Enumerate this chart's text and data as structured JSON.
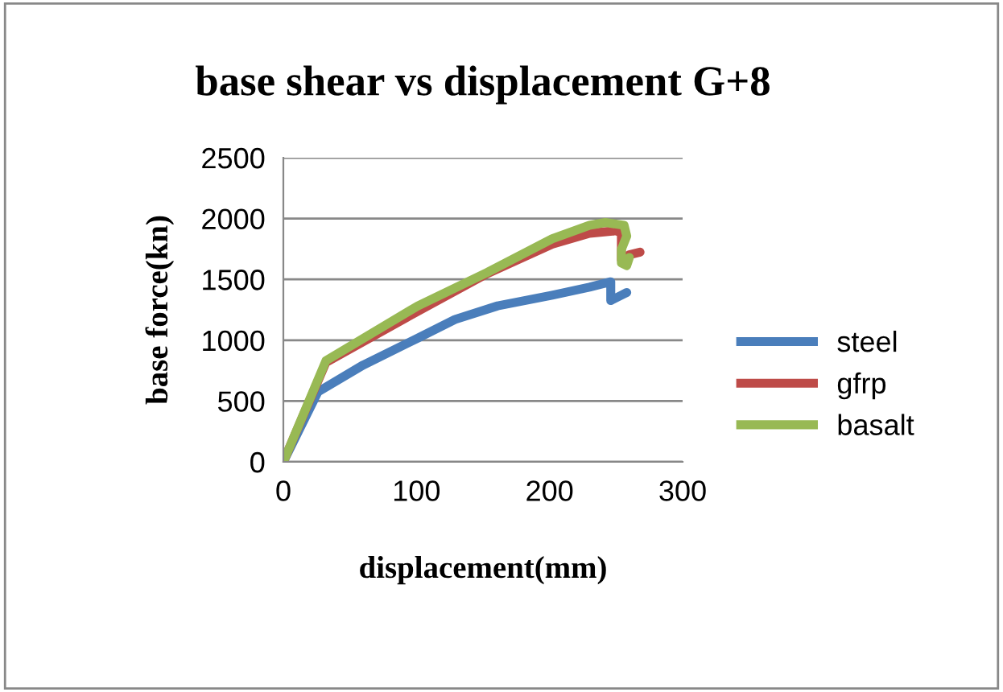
{
  "chart_data": {
    "type": "line",
    "title": "base shear vs displacement G+8",
    "xlabel": "displacement(mm)",
    "ylabel": "base force(kn)",
    "xlim": [
      0,
      300
    ],
    "xticks": [
      0,
      100,
      200,
      300
    ],
    "ylim": [
      0,
      2500
    ],
    "yticks": [
      0,
      500,
      1000,
      1500,
      2000,
      2500
    ],
    "grid": "y",
    "legend": "right",
    "marker": "none",
    "line_style": "solid",
    "series": [
      {
        "name": "steel",
        "color": "#4a7ebb",
        "x": [
          0,
          26,
          60,
          101,
          129,
          161,
          202,
          230,
          246,
          246,
          254,
          258
        ],
        "values": [
          0,
          575,
          796,
          1017,
          1171,
          1282,
          1370,
          1436,
          1480,
          1326,
          1370,
          1392
        ]
      },
      {
        "name": "gfrp",
        "color": "#be4b48",
        "x": [
          0,
          32,
          101,
          153,
          202,
          230,
          250,
          254,
          254,
          260,
          268
        ],
        "values": [
          0,
          818,
          1238,
          1547,
          1790,
          1879,
          1900,
          1880,
          1658,
          1702,
          1724
        ]
      },
      {
        "name": "basalt",
        "color": "#98b954",
        "x": [
          0,
          32,
          101,
          153,
          202,
          230,
          242,
          256,
          258,
          254,
          254,
          258,
          260
        ],
        "values": [
          0,
          831,
          1282,
          1556,
          1834,
          1945,
          1967,
          1945,
          1856,
          1746,
          1635,
          1613,
          1680
        ]
      }
    ]
  }
}
